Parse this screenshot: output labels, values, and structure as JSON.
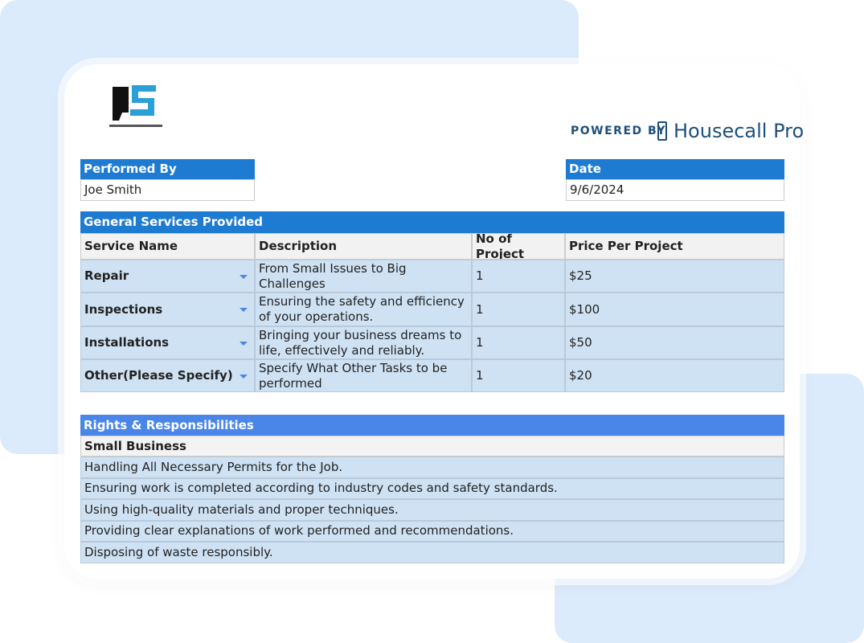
{
  "branding": {
    "powered_by": "POWERED BY",
    "provider": "Housecall Pro"
  },
  "performed_by": {
    "label": "Performed By",
    "value": "Joe Smith"
  },
  "date": {
    "label": "Date",
    "value": "9/6/2024"
  },
  "services": {
    "title": "General Services Provided",
    "headers": [
      "Service Name",
      "Description",
      "No of Project",
      "Price Per Project"
    ],
    "rows": [
      [
        "Repair",
        "From Small Issues to Big Challenges",
        "1",
        "$25"
      ],
      [
        "Inspections",
        "Ensuring the safety and efficiency of your operations.",
        "1",
        "$100"
      ],
      [
        "Installations",
        "Bringing your business dreams to life, effectively and reliably.",
        "1",
        "$50"
      ],
      [
        "Other(Please Specify)",
        "Specify What Other Tasks to be performed",
        "1",
        "$20"
      ]
    ]
  },
  "rights": {
    "title": "Rights & Responsibilities",
    "subtitle": "Small Business",
    "items": [
      "Handling All Necessary Permits for the Job.",
      "Ensuring work is completed according to industry codes and safety standards.",
      "Using high-quality materials and proper techniques.",
      "Providing clear explanations of work performed and recommendations.",
      "Disposing of waste responsibly."
    ]
  }
}
